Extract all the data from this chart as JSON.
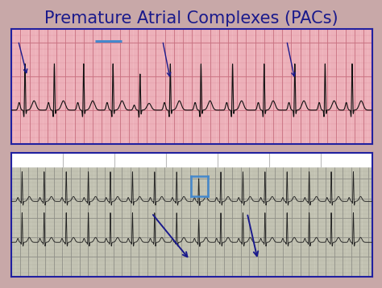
{
  "title": "Premature Atrial Complexes (PACs)",
  "title_color": "#1a1a8c",
  "title_fontsize": 15,
  "bg_color": "#c8a8a8",
  "panel1_bg": "#f0b8c0",
  "panel1_grid_minor": "#e090a0",
  "panel1_grid_major": "#c87080",
  "panel1_border": "#2020a0",
  "panel2_bg": "#c8c8b8",
  "panel2_grid_minor": "#b0b0a0",
  "panel2_grid_major": "#909088",
  "panel2_border": "#2020a0",
  "panel2_white_band": "#ffffff",
  "ecg1_color": "#111111",
  "ecg2_color": "#222222",
  "arrow_color": "#1a1a8c",
  "highlight_color": "#4488cc"
}
